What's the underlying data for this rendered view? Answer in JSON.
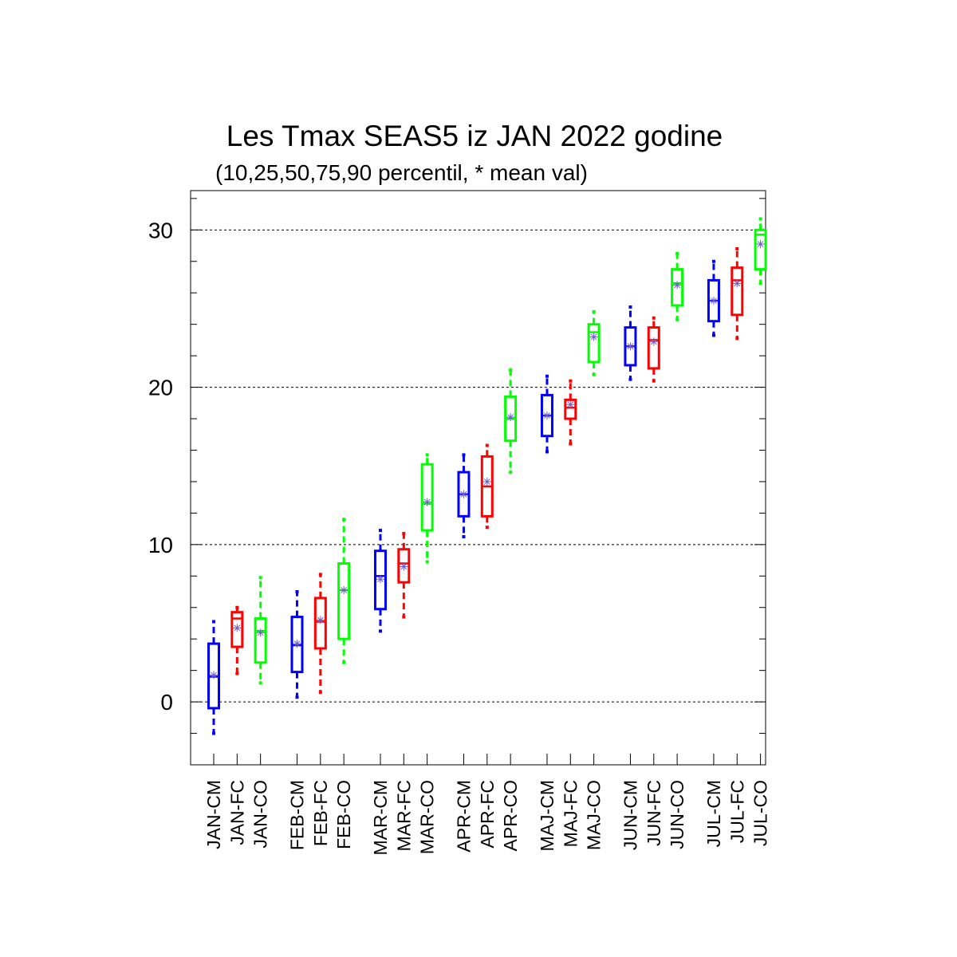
{
  "chart_data": {
    "type": "boxplot",
    "title": "Les Tmax SEAS5 iz JAN 2022 godine",
    "subtitle": "(10,25,50,75,90 percentil, * mean val)",
    "xlabel": "",
    "ylabel": "",
    "ylim": [
      -4,
      32.5
    ],
    "yticks": [
      0,
      10,
      20,
      30
    ],
    "ytick_labels": [
      "0",
      "10",
      "20",
      "30"
    ],
    "grid_y": [
      0,
      10,
      20,
      30
    ],
    "colors": {
      "CM": "#0000ff",
      "FC": "#ff0000",
      "CO": "#00ff00",
      "mean_marker": "#6a5acd"
    },
    "categories": [
      "JAN-CM",
      "JAN-FC",
      "JAN-CO",
      "FEB-CM",
      "FEB-FC",
      "FEB-CO",
      "MAR-CM",
      "MAR-FC",
      "MAR-CO",
      "APR-CM",
      "APR-FC",
      "APR-CO",
      "MAJ-CM",
      "MAJ-FC",
      "MAJ-CO",
      "JUN-CM",
      "JUN-FC",
      "JUN-CO",
      "JUL-CM",
      "JUL-FC",
      "JUL-CO"
    ],
    "boxes": [
      {
        "label": "JAN-CM",
        "series": "CM",
        "p10": -2.0,
        "p25": -0.4,
        "p50": 1.6,
        "p75": 3.7,
        "p90": 5.1,
        "mean": 1.7
      },
      {
        "label": "JAN-FC",
        "series": "FC",
        "p10": 1.8,
        "p25": 3.5,
        "p50": 5.3,
        "p75": 5.7,
        "p90": 6.0,
        "mean": 4.7
      },
      {
        "label": "JAN-CO",
        "series": "CO",
        "p10": 1.2,
        "p25": 2.5,
        "p50": 4.5,
        "p75": 5.3,
        "p90": 7.9,
        "mean": 4.4
      },
      {
        "label": "FEB-CM",
        "series": "CM",
        "p10": 0.3,
        "p25": 1.9,
        "p50": 3.6,
        "p75": 5.4,
        "p90": 7.0,
        "mean": 3.7
      },
      {
        "label": "FEB-FC",
        "series": "FC",
        "p10": 0.6,
        "p25": 3.4,
        "p50": 5.1,
        "p75": 6.6,
        "p90": 8.1,
        "mean": 5.2
      },
      {
        "label": "FEB-CO",
        "series": "CO",
        "p10": 2.5,
        "p25": 4.0,
        "p50": 7.1,
        "p75": 8.8,
        "p90": 11.6,
        "mean": 7.1
      },
      {
        "label": "MAR-CM",
        "series": "CM",
        "p10": 4.5,
        "p25": 5.9,
        "p50": 8.0,
        "p75": 9.6,
        "p90": 10.9,
        "mean": 7.8
      },
      {
        "label": "MAR-FC",
        "series": "FC",
        "p10": 5.4,
        "p25": 7.6,
        "p50": 8.8,
        "p75": 9.7,
        "p90": 10.7,
        "mean": 8.6
      },
      {
        "label": "MAR-CO",
        "series": "CO",
        "p10": 8.9,
        "p25": 10.9,
        "p50": 12.6,
        "p75": 15.1,
        "p90": 15.7,
        "mean": 12.7
      },
      {
        "label": "APR-CM",
        "series": "CM",
        "p10": 10.5,
        "p25": 11.8,
        "p50": 13.2,
        "p75": 14.6,
        "p90": 15.7,
        "mean": 13.2
      },
      {
        "label": "APR-FC",
        "series": "FC",
        "p10": 11.1,
        "p25": 11.8,
        "p50": 13.7,
        "p75": 15.6,
        "p90": 16.3,
        "mean": 14.0
      },
      {
        "label": "APR-CO",
        "series": "CO",
        "p10": 14.6,
        "p25": 16.6,
        "p50": 18.0,
        "p75": 19.4,
        "p90": 21.1,
        "mean": 18.1
      },
      {
        "label": "MAJ-CM",
        "series": "CM",
        "p10": 15.9,
        "p25": 16.9,
        "p50": 18.2,
        "p75": 19.5,
        "p90": 20.7,
        "mean": 18.2
      },
      {
        "label": "MAJ-FC",
        "series": "FC",
        "p10": 16.4,
        "p25": 18.0,
        "p50": 18.7,
        "p75": 19.2,
        "p90": 20.4,
        "mean": 18.9
      },
      {
        "label": "MAJ-CO",
        "series": "CO",
        "p10": 20.8,
        "p25": 21.6,
        "p50": 23.5,
        "p75": 24.0,
        "p90": 24.8,
        "mean": 23.2
      },
      {
        "label": "JUN-CM",
        "series": "CM",
        "p10": 20.5,
        "p25": 21.4,
        "p50": 22.6,
        "p75": 23.8,
        "p90": 25.1,
        "mean": 22.6
      },
      {
        "label": "JUN-FC",
        "series": "FC",
        "p10": 20.4,
        "p25": 21.2,
        "p50": 23.0,
        "p75": 23.8,
        "p90": 24.4,
        "mean": 22.9
      },
      {
        "label": "JUN-CO",
        "series": "CO",
        "p10": 24.3,
        "p25": 25.2,
        "p50": 26.6,
        "p75": 27.5,
        "p90": 28.5,
        "mean": 26.5
      },
      {
        "label": "JUL-CM",
        "series": "CM",
        "p10": 23.3,
        "p25": 24.2,
        "p50": 25.5,
        "p75": 26.8,
        "p90": 28.0,
        "mean": 25.5
      },
      {
        "label": "JUL-FC",
        "series": "FC",
        "p10": 23.1,
        "p25": 24.6,
        "p50": 26.8,
        "p75": 27.6,
        "p90": 28.8,
        "mean": 26.6
      },
      {
        "label": "JUL-CO",
        "series": "CO",
        "p10": 26.6,
        "p25": 27.5,
        "p50": 29.7,
        "p75": 30.0,
        "p90": 30.7,
        "mean": 29.1
      }
    ]
  }
}
